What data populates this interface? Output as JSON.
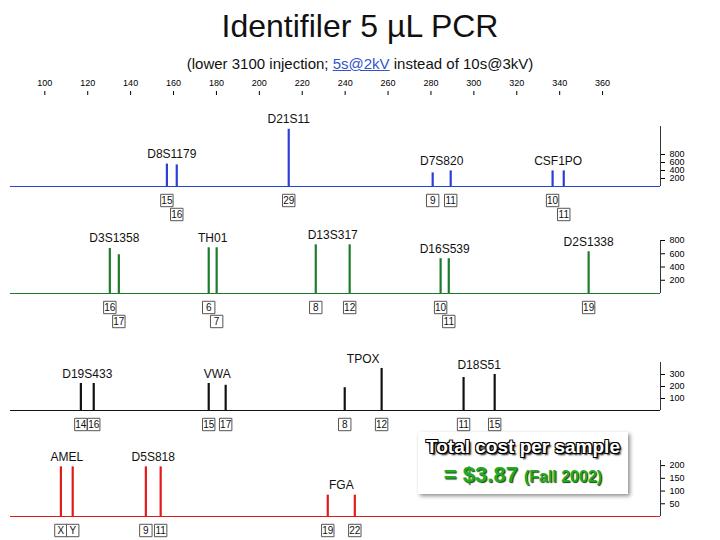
{
  "chart_data": {
    "type": "electropherogram",
    "title": "Identifiler 5 µL PCR",
    "subtitle": [
      "(lower 3100 injection; ",
      "5s@2kV",
      " instead of 10s@3kV)"
    ],
    "xlim": [
      84,
      387
    ],
    "xticks": [
      100,
      120,
      140,
      160,
      180,
      200,
      220,
      240,
      260,
      280,
      300,
      320,
      340,
      360
    ],
    "panels": [
      {
        "color": "#2b3fd6",
        "ylim": [
          0,
          1500
        ],
        "yticks": [
          200,
          400,
          600,
          800
        ],
        "loci": [
          {
            "name": "D8S1179",
            "alleles": [
              {
                "label": "15",
                "x": 156.9,
                "height": 560
              },
              {
                "label": "16",
                "x": 161.5,
                "height": 540
              }
            ]
          },
          {
            "name": "D21S11",
            "alleles": [
              {
                "label": "29",
                "x": 213.7,
                "height": 1430
              }
            ]
          },
          {
            "name": "D7S820",
            "alleles": [
              {
                "label": "9",
                "x": 280.8,
                "height": 340
              },
              {
                "label": "11",
                "x": 289.2,
                "height": 390
              }
            ]
          },
          {
            "name": "CSF1PO",
            "alleles": [
              {
                "label": "10",
                "x": 336.7,
                "height": 390
              },
              {
                "label": "11",
                "x": 341.9,
                "height": 390
              }
            ]
          }
        ]
      },
      {
        "color": "#1e7b2e",
        "ylim": [
          0,
          800
        ],
        "yticks": [
          200,
          400,
          600,
          800
        ],
        "loci": [
          {
            "name": "D3S1358",
            "alleles": [
              {
                "label": "16",
                "x": 130.3,
                "height": 680
              },
              {
                "label": "17",
                "x": 134.5,
                "height": 585
              }
            ]
          },
          {
            "name": "TH01",
            "alleles": [
              {
                "label": "6",
                "x": 176.4,
                "height": 690
              },
              {
                "label": "7",
                "x": 180.1,
                "height": 690
              }
            ]
          },
          {
            "name": "D13S317",
            "alleles": [
              {
                "label": "8",
                "x": 226.3,
                "height": 735
              },
              {
                "label": "12",
                "x": 242.1,
                "height": 735
              }
            ]
          },
          {
            "name": "D16S539",
            "alleles": [
              {
                "label": "10",
                "x": 284.5,
                "height": 525
              },
              {
                "label": "11",
                "x": 288.3,
                "height": 525
              }
            ]
          },
          {
            "name": "D2S1338",
            "alleles": [
              {
                "label": "19",
                "x": 353.5,
                "height": 630
              }
            ]
          }
        ]
      },
      {
        "color": "#111111",
        "ylim": [
          0,
          400
        ],
        "yticks": [
          100,
          200,
          300
        ],
        "loci": [
          {
            "name": "D19S433",
            "alleles": [
              {
                "label": "14",
                "x": 116.8,
                "height": 225
              },
              {
                "label": "16",
                "x": 122.8,
                "height": 225
              }
            ]
          },
          {
            "name": "VWA",
            "alleles": [
              {
                "label": "15",
                "x": 176.4,
                "height": 225
              },
              {
                "label": "17",
                "x": 184.3,
                "height": 210
              }
            ]
          },
          {
            "name": "TPOX",
            "alleles": [
              {
                "label": "8",
                "x": 239.8,
                "height": 190
              },
              {
                "label": "12",
                "x": 257.0,
                "height": 350
              }
            ]
          },
          {
            "name": "D18S51",
            "alleles": [
              {
                "label": "11",
                "x": 295.2,
                "height": 275
              },
              {
                "label": "15",
                "x": 309.7,
                "height": 300
              }
            ]
          }
        ]
      },
      {
        "color": "#e31a1a",
        "ylim": [
          0,
          220
        ],
        "yticks": [
          50,
          100,
          150,
          200
        ],
        "loci": [
          {
            "name": "AMEL",
            "alleles": [
              {
                "label": "X",
                "x": 107.5,
                "height": 195
              },
              {
                "label": "Y",
                "x": 113.0,
                "height": 195
              }
            ]
          },
          {
            "name": "D5S818",
            "alleles": [
              {
                "label": "9",
                "x": 147.1,
                "height": 195
              },
              {
                "label": "11",
                "x": 154.0,
                "height": 195
              }
            ]
          },
          {
            "name": "FGA",
            "alleles": [
              {
                "label": "19",
                "x": 231.9,
                "height": 84
              },
              {
                "label": "22",
                "x": 244.5,
                "height": 84
              }
            ]
          }
        ]
      }
    ],
    "annotation": [
      "Total cost per sample",
      "= $3.87",
      "(Fall 2002)"
    ]
  }
}
